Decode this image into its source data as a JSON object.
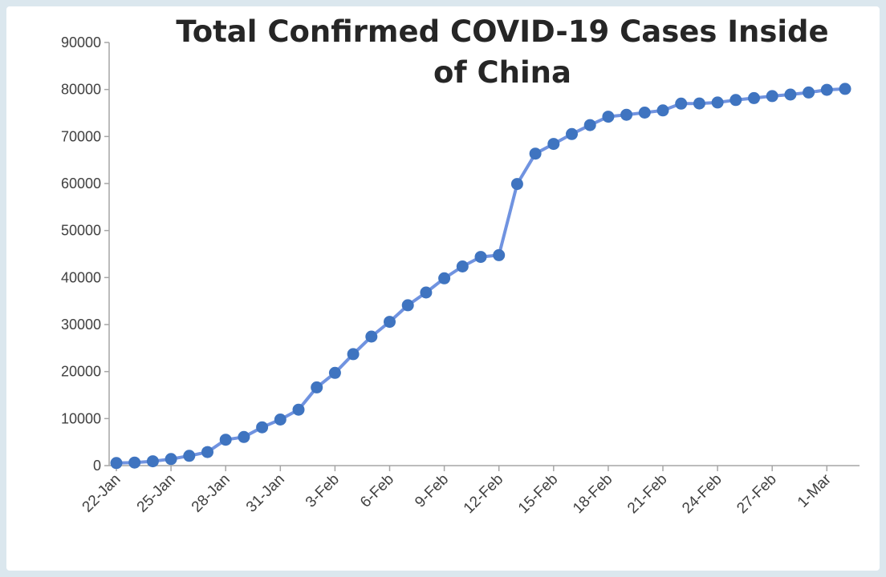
{
  "colors": {
    "line": "#7093e0",
    "marker": "#3f74c0",
    "axis": "#a6a6a6",
    "text": "#404040",
    "background": "#dbe7ee"
  },
  "chart_data": {
    "type": "line",
    "title": "Total Confirmed COVID-19 Cases Inside of China",
    "title_lines": [
      "Total Confirmed COVID-19 Cases Inside",
      "of China"
    ],
    "xlabel": "",
    "ylabel": "",
    "ylim": [
      0,
      90000
    ],
    "yticks": [
      0,
      10000,
      20000,
      30000,
      40000,
      50000,
      60000,
      70000,
      80000,
      90000
    ],
    "xtick_labels": [
      "22-Jan",
      "25-Jan",
      "28-Jan",
      "31-Jan",
      "3-Feb",
      "6-Feb",
      "9-Feb",
      "12-Feb",
      "15-Feb",
      "18-Feb",
      "21-Feb",
      "24-Feb",
      "27-Feb",
      "1-Mar"
    ],
    "grid": false,
    "legend": "none",
    "x": [
      "22-Jan",
      "23-Jan",
      "24-Jan",
      "25-Jan",
      "26-Jan",
      "27-Jan",
      "28-Jan",
      "29-Jan",
      "30-Jan",
      "31-Jan",
      "1-Feb",
      "2-Feb",
      "3-Feb",
      "4-Feb",
      "5-Feb",
      "6-Feb",
      "7-Feb",
      "8-Feb",
      "9-Feb",
      "10-Feb",
      "11-Feb",
      "12-Feb",
      "13-Feb",
      "14-Feb",
      "15-Feb",
      "16-Feb",
      "17-Feb",
      "18-Feb",
      "19-Feb",
      "20-Feb",
      "21-Feb",
      "22-Feb",
      "23-Feb",
      "24-Feb",
      "25-Feb",
      "26-Feb",
      "27-Feb",
      "28-Feb",
      "29-Feb",
      "1-Mar",
      "2-Mar"
    ],
    "series": [
      {
        "values": [
          548,
          643,
          920,
          1406,
          2075,
          2877,
          5509,
          6087,
          8141,
          9802,
          11891,
          16630,
          19716,
          23707,
          27440,
          30587,
          34110,
          36814,
          39829,
          42354,
          44386,
          44759,
          59895,
          66358,
          68413,
          70513,
          72434,
          74211,
          74619,
          75077,
          75550,
          77001,
          77022,
          77241,
          77754,
          78166,
          78600,
          78928,
          79356,
          79932,
          80136
        ]
      }
    ]
  }
}
